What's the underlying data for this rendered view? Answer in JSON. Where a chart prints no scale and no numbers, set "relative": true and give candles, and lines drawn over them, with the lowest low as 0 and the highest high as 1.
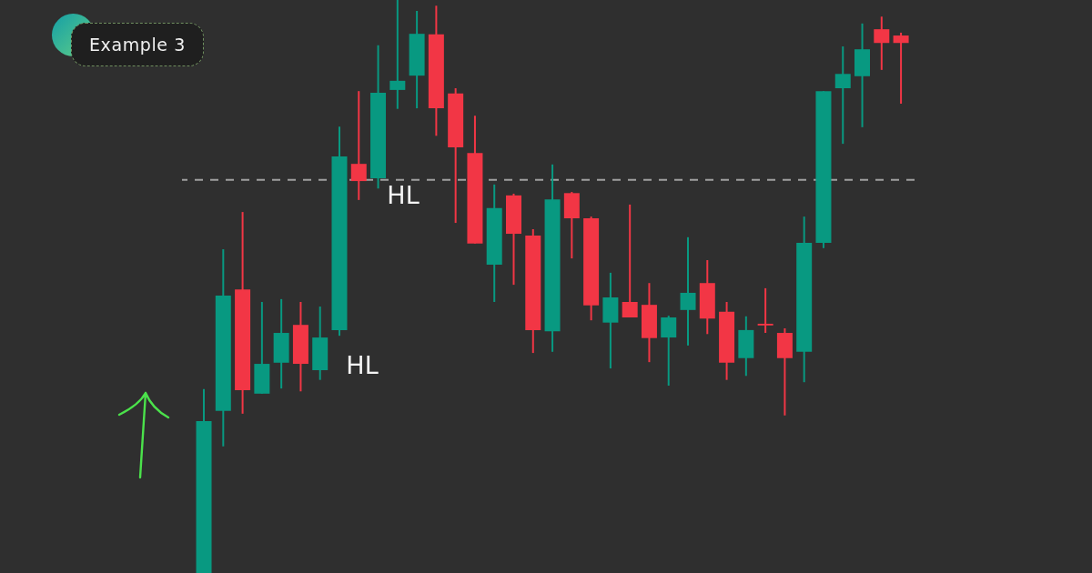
{
  "chart_data": {
    "type": "candlestick",
    "title": "Example 3",
    "relative": true,
    "categories": [
      null,
      null,
      null,
      null,
      null,
      null,
      null,
      null,
      null,
      null,
      null,
      null,
      null,
      null,
      null,
      null,
      null,
      null,
      null,
      null,
      null,
      null,
      null,
      null,
      null,
      null,
      null,
      null,
      null,
      null,
      null,
      null,
      null,
      null,
      null,
      null,
      null
    ],
    "ohlc": [
      [
        0,
        0.321,
        0,
        0.265
      ],
      [
        0.283,
        0.565,
        0.221,
        0.484
      ],
      [
        0.495,
        0.63,
        0.278,
        0.319
      ],
      [
        0.313,
        0.473,
        0.313,
        0.365
      ],
      [
        0.367,
        0.478,
        0.322,
        0.419
      ],
      [
        0.433,
        0.473,
        0.317,
        0.365
      ],
      [
        0.354,
        0.465,
        0.337,
        0.411
      ],
      [
        0.424,
        0.779,
        0.414,
        0.727
      ],
      [
        0.714,
        0.841,
        0.651,
        0.684
      ],
      [
        0.689,
        0.921,
        0.671,
        0.838
      ],
      [
        0.843,
        1,
        0.81,
        0.859
      ],
      [
        0.868,
        0.981,
        0.811,
        0.941
      ],
      [
        0.94,
        0.99,
        0.763,
        0.811
      ],
      [
        0.837,
        0.846,
        0.611,
        0.743
      ],
      [
        0.733,
        0.798,
        0.575,
        0.575
      ],
      [
        0.538,
        0.678,
        0.473,
        0.637
      ],
      [
        0.659,
        0.662,
        0.503,
        0.592
      ],
      [
        0.589,
        0.6,
        0.384,
        0.424
      ],
      [
        0.422,
        0.713,
        0.386,
        0.652
      ],
      [
        0.663,
        0.665,
        0.549,
        0.619
      ],
      [
        0.619,
        0.622,
        0.441,
        0.467
      ],
      [
        0.437,
        0.524,
        0.357,
        0.481
      ],
      [
        0.473,
        0.643,
        0.446,
        0.446
      ],
      [
        0.468,
        0.506,
        0.368,
        0.41
      ],
      [
        0.411,
        0.449,
        0.327,
        0.446
      ],
      [
        0.459,
        0.586,
        0.397,
        0.489
      ],
      [
        0.506,
        0.546,
        0.417,
        0.444
      ],
      [
        0.456,
        0.473,
        0.337,
        0.367
      ],
      [
        0.375,
        0.448,
        0.344,
        0.424
      ],
      [
        0.435,
        0.497,
        0.419,
        0.432
      ],
      [
        0.419,
        0.427,
        0.275,
        0.375
      ],
      [
        0.386,
        0.622,
        0.333,
        0.576
      ],
      [
        0.576,
        0.841,
        0.567,
        0.841
      ],
      [
        0.846,
        0.919,
        0.749,
        0.871
      ],
      [
        0.867,
        0.959,
        0.778,
        0.914
      ],
      [
        0.949,
        0.971,
        0.878,
        0.925
      ],
      [
        0.938,
        0.943,
        0.819,
        0.925
      ]
    ],
    "colors": [
      "#089981",
      "#089981",
      "#f23645",
      "#089981",
      "#089981",
      "#f23645",
      "#089981",
      "#089981",
      "#f23645",
      "#089981",
      "#089981",
      "#089981",
      "#f23645",
      "#f23645",
      "#f23645",
      "#089981",
      "#f23645",
      "#f23645",
      "#089981",
      "#f23645",
      "#f23645",
      "#089981",
      "#f23645",
      "#f23645",
      "#089981",
      "#089981",
      "#f23645",
      "#f23645",
      "#089981",
      "#f23645",
      "#f23645",
      "#089981",
      "#089981",
      "#089981",
      "#089981",
      "#f23645",
      "#f23645"
    ],
    "ref_lines": [
      {
        "axis": "y",
        "value": 0.686,
        "color": "#a0a0a0",
        "line_style": "dashed"
      }
    ],
    "annotations": [
      "HL",
      "HL"
    ]
  }
}
